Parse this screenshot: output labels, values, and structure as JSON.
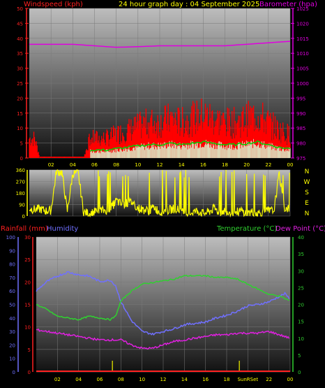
{
  "header": {
    "title": "24 hour graph day : 04 September 2025",
    "left_label": "Windspeed (kph)",
    "right_label": "Barometer (hpa)"
  },
  "lower_header": {
    "rain_label": "Rainfall (mm)",
    "humidity_label": "Humidity",
    "temp_label": "Temperature (°C)",
    "dew_label": "Dew Point (°C)"
  },
  "colors": {
    "wind": "#ff0000",
    "barometer": "#e000e0",
    "gust_avg": "#00d000",
    "gust_light": "#d8ffd8",
    "direction": "#ffff00",
    "humidity": "#7070ff",
    "temperature": "#30d030",
    "dewpoint": "#e020e0",
    "rain": "#ff2020",
    "sun_marker": "#c8c800"
  },
  "time_labels": [
    "02",
    "04",
    "06",
    "08",
    "10",
    "12",
    "14",
    "16",
    "18",
    "20",
    "22",
    "00"
  ],
  "lower_time_labels": [
    "02",
    "04",
    "06",
    "08",
    "10",
    "12",
    "14",
    "16",
    "18",
    "SunRSet",
    "22",
    "00"
  ],
  "direction_labels": [
    "N",
    "W",
    "S",
    "E",
    "N"
  ],
  "chart_data": [
    {
      "type": "line",
      "x_unit": "hour",
      "left_axis": {
        "ticks": [
          "0",
          "5",
          "10",
          "15",
          "20",
          "25",
          "30",
          "35",
          "40",
          "45",
          "50"
        ],
        "ylim": [
          0,
          50
        ]
      },
      "right_axis": {
        "ticks": [
          "975",
          "980",
          "985",
          "990",
          "995",
          "1000",
          "1005",
          "1010",
          "1015",
          "1020",
          "1025"
        ],
        "ylim": [
          975,
          1025
        ]
      },
      "series": [
        {
          "name": "Windspeed",
          "axis": "left",
          "x": [
            0,
            0.5,
            1,
            2,
            3,
            4,
            5,
            5.6,
            6,
            7,
            8,
            9,
            10,
            11,
            12,
            13,
            14,
            15,
            16,
            17,
            18,
            19,
            20,
            21,
            22,
            23,
            24
          ],
          "values": [
            5,
            5,
            0,
            0,
            0,
            0,
            0,
            5,
            5,
            5,
            6,
            7,
            8,
            9,
            9,
            10,
            9,
            10,
            11,
            10,
            9,
            9,
            10,
            11,
            9,
            7,
            6
          ]
        },
        {
          "name": "Barometer",
          "axis": "right",
          "x": [
            0,
            2,
            4,
            6,
            8,
            10,
            12,
            14,
            16,
            18,
            20,
            22,
            24
          ],
          "values": [
            1013,
            1013,
            1013,
            1012.5,
            1012,
            1012.2,
            1012.5,
            1012.5,
            1012.5,
            1012.5,
            1013,
            1013.5,
            1014
          ]
        }
      ]
    },
    {
      "type": "scatter",
      "x_unit": "hour",
      "left_axis": {
        "ticks": [
          "360",
          "270",
          "180",
          "90",
          "0"
        ],
        "ylim": [
          0,
          360
        ]
      },
      "series": [
        {
          "name": "Wind direction",
          "x": [
            0,
            0.5,
            1,
            1.5,
            2,
            2.5,
            3,
            3.5,
            4,
            4.5,
            5,
            5.5,
            6,
            6.5,
            7,
            7.5,
            8,
            8.5,
            9,
            9.5,
            10,
            10.5,
            11,
            11.5,
            12,
            12.5,
            13,
            13.5,
            14,
            14.5,
            15,
            15.5,
            16,
            16.5,
            17,
            17.5,
            18,
            18.5,
            19,
            19.5,
            20,
            20.5,
            21,
            21.5,
            22,
            22.5,
            23,
            23.5,
            24
          ],
          "values": [
            60,
            50,
            55,
            40,
            45,
            350,
            340,
            40,
            330,
            335,
            30,
            20,
            30,
            40,
            45,
            60,
            120,
            90,
            100,
            110,
            60,
            50,
            40,
            70,
            30,
            40,
            50,
            60,
            30,
            20,
            30,
            40,
            20,
            30,
            60,
            30,
            40,
            30,
            30,
            40,
            20,
            30,
            20,
            30,
            40,
            40,
            330,
            60,
            60
          ]
        }
      ]
    },
    {
      "type": "line",
      "x_unit": "hour",
      "left_axis": {
        "ticks": [
          "0",
          "5",
          "10",
          "15",
          "20",
          "25",
          "30"
        ],
        "ylim": [
          0,
          30
        ],
        "label": "Rainfall (mm)"
      },
      "humidity_axis": {
        "ticks": [
          "0",
          "10",
          "20",
          "30",
          "40",
          "50",
          "60",
          "70",
          "80",
          "90",
          "100"
        ],
        "ylim": [
          0,
          100
        ],
        "label": "Humidity"
      },
      "right_axis": {
        "ticks": [
          "0",
          "5",
          "10",
          "15",
          "20",
          "25",
          "30",
          "35",
          "40"
        ],
        "ylim": [
          0,
          40
        ],
        "label": "Temperature (°C)"
      },
      "series": [
        {
          "name": "Humidity",
          "axis": "humidity",
          "x": [
            0,
            1,
            2,
            3,
            4,
            5,
            6,
            7,
            7.5,
            8,
            9,
            10,
            11,
            12,
            13,
            14,
            15,
            16,
            17,
            18,
            19,
            20,
            21,
            22,
            23,
            23.5,
            24
          ],
          "values": [
            60,
            67,
            71,
            74,
            72,
            71,
            67,
            68,
            64,
            52,
            38,
            30,
            28,
            30,
            32,
            35,
            36,
            37,
            40,
            42,
            45,
            49,
            50,
            52,
            56,
            58,
            54
          ]
        },
        {
          "name": "Temperature",
          "axis": "right",
          "x": [
            0,
            1,
            2,
            3,
            4,
            5,
            6,
            7,
            7.5,
            8,
            9,
            10,
            11,
            12,
            13,
            14,
            15,
            16,
            17,
            18,
            19,
            20,
            21,
            22,
            23,
            24
          ],
          "values": [
            20,
            18.5,
            16.5,
            16,
            15.5,
            16.5,
            16,
            15.5,
            16.5,
            21,
            24,
            26,
            26.5,
            27,
            27.5,
            28.5,
            28.5,
            28.5,
            28,
            28,
            27.5,
            26,
            24.5,
            23,
            22.5,
            21
          ]
        },
        {
          "name": "Dew Point",
          "axis": "right",
          "x": [
            0,
            1,
            2,
            3,
            4,
            5,
            6,
            7,
            8,
            9,
            10,
            11,
            12,
            13,
            14,
            15,
            16,
            17,
            18,
            19,
            20,
            21,
            22,
            23,
            24
          ],
          "values": [
            12.5,
            12,
            11.5,
            11,
            10.5,
            10,
            9.5,
            9.5,
            9.5,
            8,
            7,
            7,
            8,
            9,
            9.5,
            10,
            10.5,
            11,
            11,
            11.5,
            11.5,
            11.5,
            12,
            11,
            10
          ]
        },
        {
          "name": "Rainfall",
          "axis": "left",
          "x": [
            0,
            24
          ],
          "values": [
            0,
            0
          ]
        }
      ]
    }
  ]
}
